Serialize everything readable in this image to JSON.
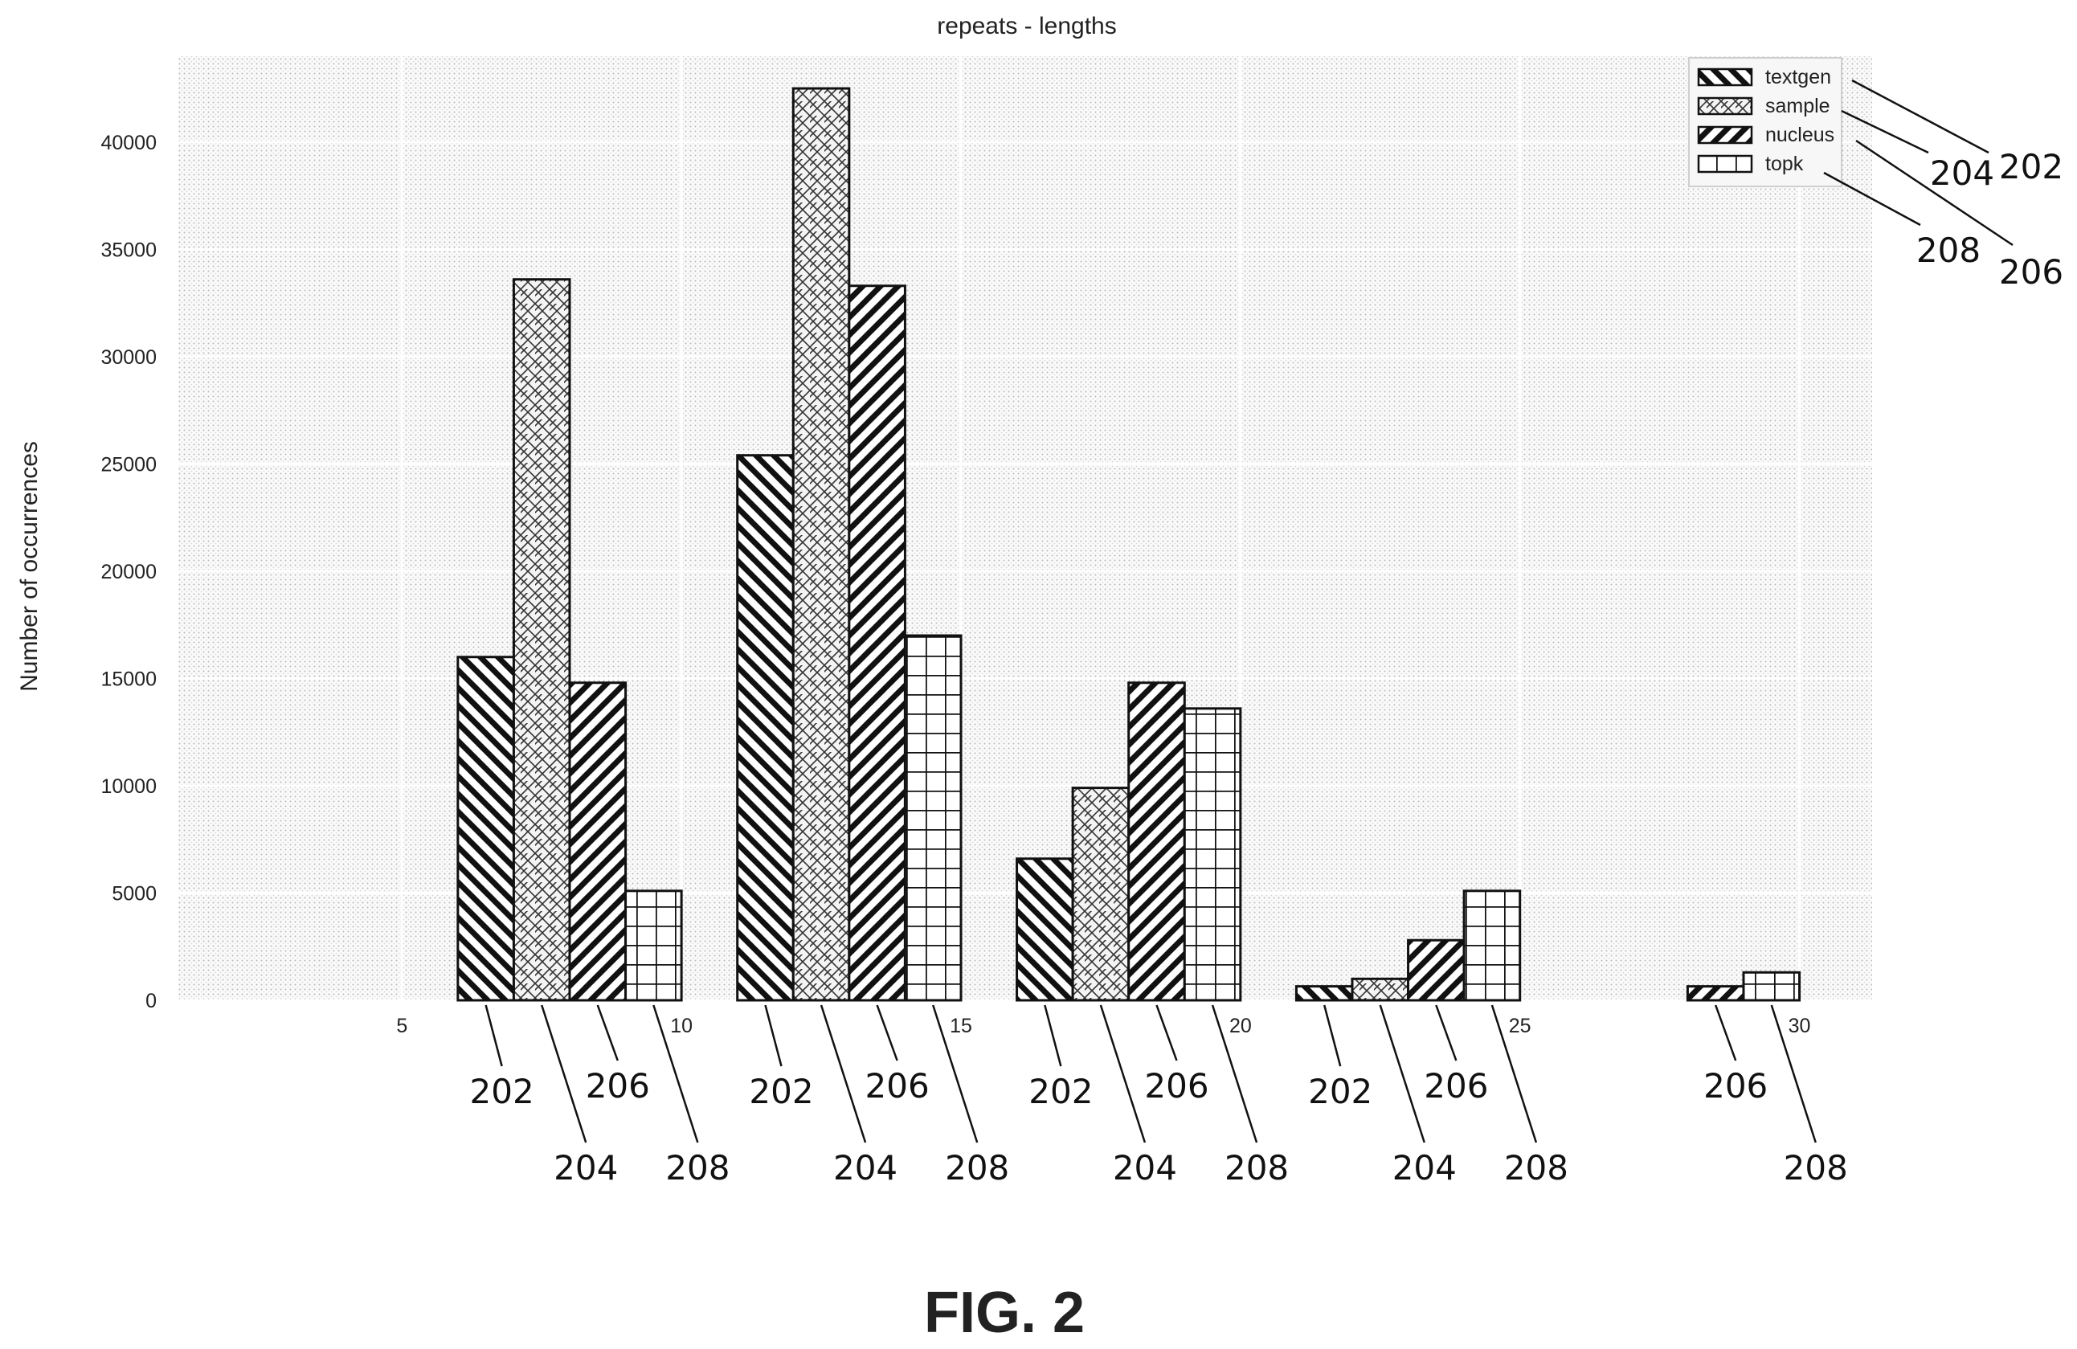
{
  "figure": {
    "caption": "FIG. 2"
  },
  "chart_data": {
    "type": "bar",
    "title": "repeats - lengths",
    "xlabel": "",
    "ylabel": "Number of occurrences",
    "xlim": [
      1,
      31.3
    ],
    "ylim": [
      0,
      44000
    ],
    "x_ticks": [
      "5",
      "10",
      "15",
      "20",
      "25",
      "30"
    ],
    "y_ticks": [
      "0",
      "5000",
      "10000",
      "15000",
      "20000",
      "25000",
      "30000",
      "35000",
      "40000"
    ],
    "grid": true,
    "legend_position": "top-right",
    "bins": [
      {
        "x_start": 6,
        "x_end": 10
      },
      {
        "x_start": 11,
        "x_end": 15
      },
      {
        "x_start": 16,
        "x_end": 20
      },
      {
        "x_start": 21,
        "x_end": 25
      },
      {
        "x_start": 26,
        "x_end": 30
      }
    ],
    "series": [
      {
        "name": "textgen",
        "ref": "202",
        "hatch": "backslash",
        "values": [
          16000,
          25400,
          6600,
          650,
          0
        ]
      },
      {
        "name": "sample",
        "ref": "204",
        "hatch": "crosshatch",
        "values": [
          33600,
          42500,
          9900,
          1000,
          0
        ]
      },
      {
        "name": "nucleus",
        "ref": "206",
        "hatch": "slash",
        "values": [
          14800,
          33300,
          14800,
          2800,
          650
        ]
      },
      {
        "name": "topk",
        "ref": "208",
        "hatch": "grid",
        "values": [
          5100,
          17000,
          13600,
          5100,
          1300
        ]
      }
    ]
  }
}
